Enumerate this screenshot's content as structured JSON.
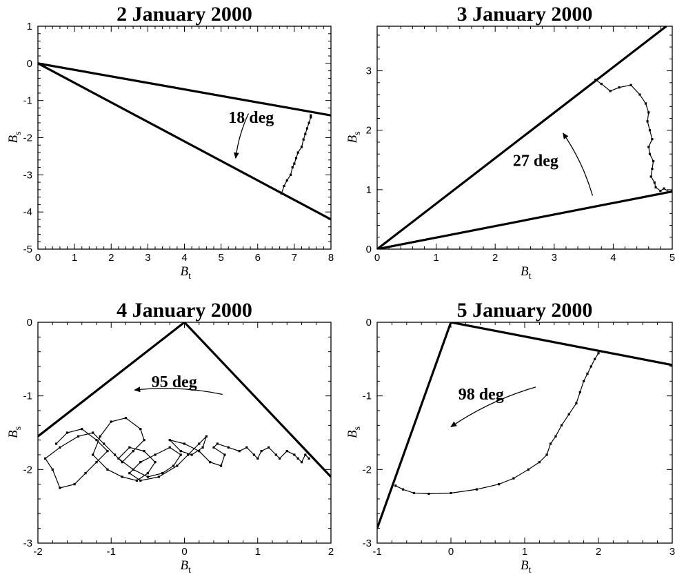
{
  "chart_data": [
    {
      "type": "line",
      "title": "2 January 2000",
      "xlabel": "B",
      "xlabel_sub": "t",
      "ylabel": "B",
      "ylabel_sub": "s",
      "xlim": [
        0,
        8
      ],
      "ylim": [
        -5,
        1
      ],
      "xticks": [
        0,
        1,
        2,
        3,
        4,
        5,
        6,
        7,
        8
      ],
      "yticks": [
        -5,
        -4,
        -3,
        -2,
        -1,
        0,
        1
      ],
      "tick_labels_x": [
        "0",
        "1",
        "2",
        "3",
        "4",
        "5",
        "6",
        "7",
        "8"
      ],
      "tick_labels_y": [
        "-5",
        "-4",
        "-3",
        "-2",
        "-1",
        "0",
        "1"
      ],
      "boundary_lines": [
        {
          "x": [
            0,
            8
          ],
          "y": [
            0,
            -1.4
          ]
        },
        {
          "x": [
            0,
            8
          ],
          "y": [
            0,
            -4.2
          ]
        }
      ],
      "trace": {
        "x": [
          6.65,
          6.72,
          6.8,
          6.9,
          6.95,
          7.0,
          7.05,
          7.1,
          7.2,
          7.25,
          7.3,
          7.35,
          7.4,
          7.45,
          7.45
        ],
        "y": [
          -3.5,
          -3.3,
          -3.15,
          -3.0,
          -2.8,
          -2.7,
          -2.55,
          -2.4,
          -2.25,
          -2.05,
          -1.9,
          -1.75,
          -1.6,
          -1.45,
          -1.4
        ]
      },
      "annotation": {
        "text": "18 deg",
        "x": 5.2,
        "y": -1.6
      },
      "arrow": {
        "from": [
          5.75,
          -1.35
        ],
        "to": [
          5.4,
          -2.55
        ]
      }
    },
    {
      "type": "line",
      "title": "3 January 2000",
      "xlabel": "B",
      "xlabel_sub": "t",
      "ylabel": "B",
      "ylabel_sub": "s",
      "xlim": [
        0,
        5
      ],
      "ylim": [
        0,
        3.75
      ],
      "xticks": [
        0,
        1,
        2,
        3,
        4,
        5
      ],
      "yticks": [
        0,
        1,
        2,
        3
      ],
      "tick_labels_x": [
        "0",
        "1",
        "2",
        "3",
        "4",
        "5"
      ],
      "tick_labels_y": [
        "0",
        "1",
        "2",
        "3"
      ],
      "boundary_lines": [
        {
          "x": [
            0,
            5
          ],
          "y": [
            0,
            0.97
          ]
        },
        {
          "x": [
            0,
            4.9
          ],
          "y": [
            0,
            3.75
          ]
        }
      ],
      "trace": {
        "x": [
          3.7,
          3.8,
          3.95,
          4.1,
          4.3,
          4.45,
          4.55,
          4.6,
          4.58,
          4.62,
          4.66,
          4.6,
          4.62,
          4.68,
          4.66,
          4.64,
          4.7,
          4.72,
          4.8,
          4.86,
          4.95,
          5.0
        ],
        "y": [
          2.85,
          2.78,
          2.66,
          2.72,
          2.76,
          2.6,
          2.45,
          2.3,
          2.15,
          2.0,
          1.85,
          1.72,
          1.6,
          1.48,
          1.35,
          1.22,
          1.12,
          1.04,
          0.98,
          1.02,
          0.96,
          0.98
        ]
      },
      "annotation": {
        "text": "27 deg",
        "x": 2.3,
        "y": 1.4
      },
      "arrow": {
        "from": [
          3.65,
          0.9
        ],
        "to": [
          3.15,
          1.95
        ]
      }
    },
    {
      "type": "line",
      "title": "4 January 2000",
      "xlabel": "B",
      "xlabel_sub": "t",
      "ylabel": "B",
      "ylabel_sub": "s",
      "xlim": [
        -2,
        2
      ],
      "ylim": [
        -3,
        0
      ],
      "xticks": [
        -2,
        -1,
        0,
        1,
        2
      ],
      "yticks": [
        -3,
        -2,
        -1,
        0
      ],
      "tick_labels_x": [
        "-2",
        "-1",
        "0",
        "1",
        "2"
      ],
      "tick_labels_y": [
        "-3",
        "-2",
        "-1",
        "0"
      ],
      "boundary_lines": [
        {
          "x": [
            -2,
            0
          ],
          "y": [
            -1.55,
            0
          ]
        },
        {
          "x": [
            0,
            2
          ],
          "y": [
            0,
            -2.1
          ]
        }
      ],
      "trace": {
        "x": [
          -1.75,
          -1.6,
          -1.4,
          -1.2,
          -1.05,
          -1.2,
          -1.35,
          -1.5,
          -1.7,
          -1.8,
          -1.9,
          -1.7,
          -1.45,
          -1.25,
          -1.1,
          -0.95,
          -0.85,
          -0.7,
          -0.55,
          -0.6,
          -0.8,
          -1.0,
          -1.15,
          -1.25,
          -1.05,
          -0.85,
          -0.65,
          -0.5,
          -0.4,
          -0.55,
          -0.75,
          -0.9,
          -0.7,
          -0.5,
          -0.3,
          -0.15,
          -0.05,
          -0.2,
          -0.4,
          -0.6,
          -0.75,
          -0.6,
          -0.35,
          -0.1,
          0.05,
          0.2,
          0.3,
          0.25,
          0.1,
          -0.05,
          -0.2,
          0.0,
          0.2,
          0.35,
          0.5,
          0.55,
          0.4,
          0.45,
          0.6,
          0.75,
          0.85,
          0.95,
          1.0,
          1.05,
          1.15,
          1.25,
          1.3,
          1.4,
          1.5,
          1.55,
          1.6,
          1.65,
          1.7
        ],
        "y": [
          -1.65,
          -1.5,
          -1.45,
          -1.6,
          -1.75,
          -1.9,
          -2.05,
          -2.2,
          -2.25,
          -2.0,
          -1.85,
          -1.7,
          -1.55,
          -1.5,
          -1.65,
          -1.8,
          -1.9,
          -1.75,
          -1.6,
          -1.45,
          -1.3,
          -1.35,
          -1.55,
          -1.8,
          -2.0,
          -2.1,
          -2.15,
          -2.05,
          -1.9,
          -1.75,
          -1.7,
          -1.85,
          -2.0,
          -2.1,
          -2.05,
          -1.95,
          -1.8,
          -1.7,
          -1.8,
          -1.9,
          -2.05,
          -2.15,
          -2.1,
          -1.95,
          -1.8,
          -1.65,
          -1.55,
          -1.7,
          -1.8,
          -1.75,
          -1.6,
          -1.65,
          -1.75,
          -1.9,
          -1.95,
          -1.8,
          -1.7,
          -1.65,
          -1.7,
          -1.75,
          -1.7,
          -1.8,
          -1.85,
          -1.75,
          -1.7,
          -1.8,
          -1.85,
          -1.75,
          -1.8,
          -1.85,
          -1.9,
          -1.8,
          -1.85
        ]
      },
      "annotation": {
        "text": "95 deg",
        "x": -0.45,
        "y": -0.88
      },
      "arrow": {
        "from": [
          0.52,
          -0.98
        ],
        "to": [
          -0.68,
          -0.92
        ]
      }
    },
    {
      "type": "line",
      "title": "5 January 2000",
      "xlabel": "B",
      "xlabel_sub": "t",
      "ylabel": "B",
      "ylabel_sub": "s",
      "xlim": [
        -1,
        3
      ],
      "ylim": [
        -3,
        0
      ],
      "xticks": [
        -1,
        0,
        1,
        2,
        3
      ],
      "yticks": [
        -3,
        -2,
        -1,
        0
      ],
      "tick_labels_x": [
        "-1",
        "0",
        "1",
        "2",
        "3"
      ],
      "tick_labels_y": [
        "-3",
        "-2",
        "-1",
        "0"
      ],
      "boundary_lines": [
        {
          "x": [
            -1,
            0
          ],
          "y": [
            -2.8,
            0
          ]
        },
        {
          "x": [
            0,
            3
          ],
          "y": [
            0,
            -0.58
          ]
        }
      ],
      "trace": {
        "x": [
          -0.75,
          -0.65,
          -0.5,
          -0.3,
          0.0,
          0.35,
          0.65,
          0.85,
          1.05,
          1.2,
          1.3,
          1.35,
          1.42,
          1.5,
          1.6,
          1.7,
          1.75,
          1.8,
          1.85,
          1.9,
          1.95,
          2.0
        ],
        "y": [
          -2.22,
          -2.27,
          -2.32,
          -2.33,
          -2.32,
          -2.27,
          -2.2,
          -2.12,
          -2.0,
          -1.9,
          -1.8,
          -1.65,
          -1.55,
          -1.4,
          -1.25,
          -1.1,
          -0.95,
          -0.8,
          -0.7,
          -0.6,
          -0.5,
          -0.42
        ]
      },
      "annotation": {
        "text": "98 deg",
        "x": 0.1,
        "y": -1.05
      },
      "arrow": {
        "from": [
          1.15,
          -0.88
        ],
        "to": [
          0.0,
          -1.42
        ]
      }
    }
  ]
}
